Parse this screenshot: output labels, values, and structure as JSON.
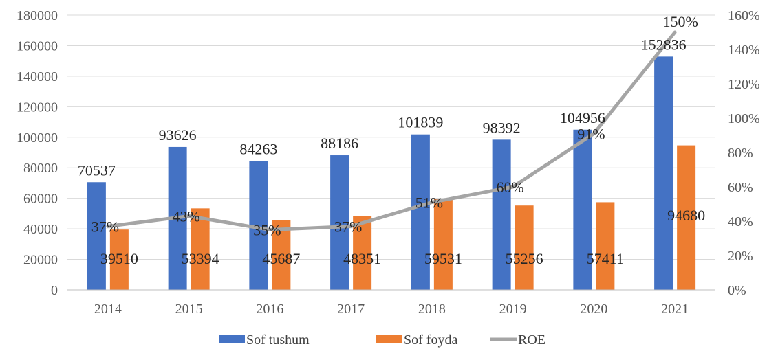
{
  "chart_data": {
    "type": "bar",
    "categories": [
      "2014",
      "2015",
      "2016",
      "2017",
      "2018",
      "2019",
      "2020",
      "2021"
    ],
    "series": [
      {
        "name": "Sof tushum",
        "kind": "bar",
        "axis": "left",
        "color": "#4472C4",
        "values": [
          70537,
          93626,
          84263,
          88186,
          101839,
          98392,
          104956,
          152836
        ],
        "labels": [
          "70537",
          "93626",
          "84263",
          "88186",
          "101839",
          "98392",
          "104956",
          "152836"
        ]
      },
      {
        "name": "Sof foyda",
        "kind": "bar",
        "axis": "left",
        "color": "#ED7D31",
        "values": [
          39510,
          53394,
          45687,
          48351,
          59531,
          55256,
          57411,
          94680
        ],
        "labels": [
          "39510",
          "53394",
          "45687",
          "48351",
          "59531",
          "55256",
          "57411",
          "94680"
        ]
      },
      {
        "name": "ROE",
        "kind": "line",
        "axis": "right",
        "color": "#A5A5A5",
        "values": [
          0.37,
          0.43,
          0.35,
          0.37,
          0.51,
          0.6,
          0.91,
          1.5
        ],
        "labels": [
          "37%",
          "43%",
          "35%",
          "37%",
          "51%",
          "60%",
          "91%",
          "150%"
        ]
      }
    ],
    "y_left": {
      "min": 0,
      "max": 180000,
      "ticks": [
        0,
        20000,
        40000,
        60000,
        80000,
        100000,
        120000,
        140000,
        160000,
        180000
      ],
      "tick_labels": [
        "0",
        "20000",
        "40000",
        "60000",
        "80000",
        "100000",
        "120000",
        "140000",
        "160000",
        "180000"
      ]
    },
    "y_right": {
      "min": 0,
      "max": 1.6,
      "ticks": [
        0,
        0.2,
        0.4,
        0.6,
        0.8,
        1.0,
        1.2,
        1.4,
        1.6
      ],
      "tick_labels": [
        "0%",
        "20%",
        "40%",
        "60%",
        "80%",
        "100%",
        "120%",
        "140%",
        "160%"
      ]
    },
    "grid": true,
    "legend_position": "bottom"
  }
}
